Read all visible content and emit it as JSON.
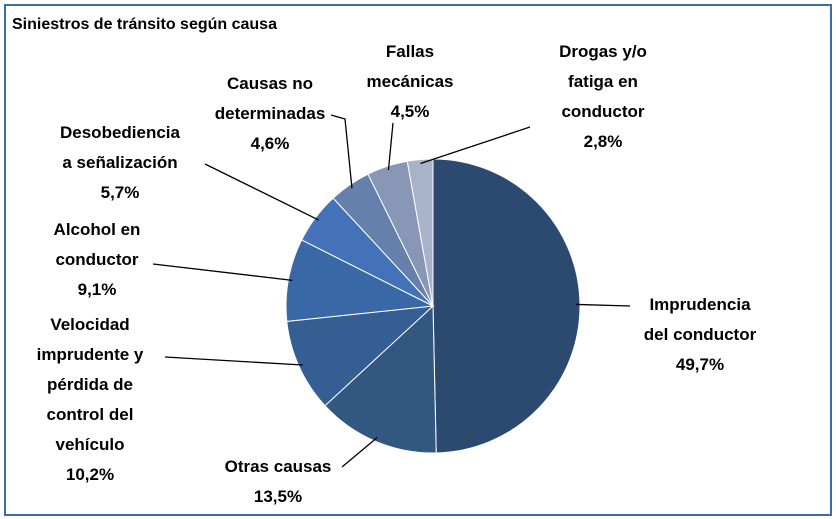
{
  "chart_data": {
    "type": "pie",
    "title": "Siniestros de tránsito según causa",
    "categories": [
      "Imprudencia\ndel conductor",
      "Otras causas",
      "Velocidad\nimprudente y\npérdida de\ncontrol del\nvehículo",
      "Alcohol en\nconductor",
      "Desobediencia\na señalización",
      "Causas no\ndeterminadas",
      "Fallas\nmecánicas",
      "Drogas y/o\nfatiga en\nconductor"
    ],
    "values": [
      49.7,
      13.5,
      10.2,
      9.1,
      5.7,
      4.6,
      4.5,
      2.8
    ],
    "value_labels": [
      "49,7%",
      "13,5%",
      "10,2%",
      "9,1%",
      "5,7%",
      "4,6%",
      "4,5%",
      "2,8%"
    ],
    "colors": [
      "#2c4a70",
      "#325882",
      "#355f93",
      "#3a68a6",
      "#4472b8",
      "#6580aa",
      "#8797b5",
      "#a8b2c8"
    ]
  }
}
